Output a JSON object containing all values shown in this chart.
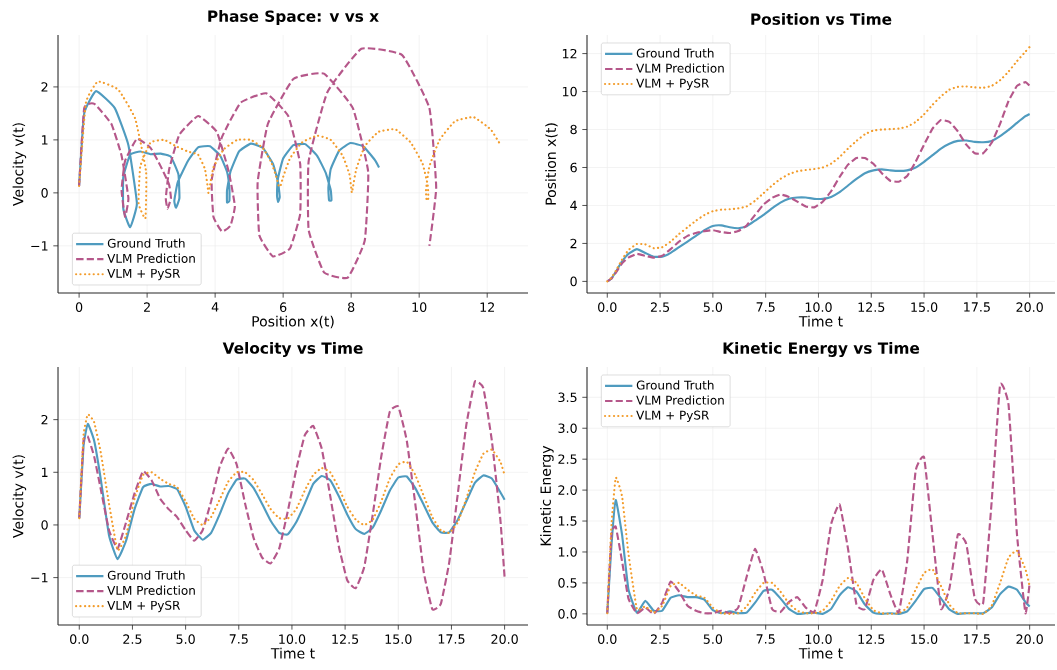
{
  "chart_data": [
    {
      "type": "line",
      "title": "Phase Space: v vs x",
      "xlabel": "Position x(t)",
      "ylabel": "Velocity v(t)",
      "xlim": [
        -0.62,
        13.2
      ],
      "ylim": [
        -1.89,
        2.98
      ],
      "xticks": [
        0,
        2,
        4,
        6,
        8,
        10,
        12
      ],
      "yticks": [
        {
          "value": -1,
          "label": "−1"
        },
        0,
        1,
        2
      ],
      "grid": true,
      "legend": "bottom left",
      "series": [
        {
          "name": "Ground Truth",
          "color": "#4f9bbf",
          "line_style": "solid",
          "x": [
            0,
            0.15,
            0.5,
            1.05,
            1.45,
            1.7,
            1.5,
            1.3,
            1.3,
            1.5,
            1.8,
            2.1,
            2.4,
            2.7,
            2.92,
            2.95,
            2.85,
            2.8,
            2.9,
            3.2,
            3.5,
            3.85,
            4.15,
            4.35,
            4.42,
            4.42,
            4.35,
            4.35,
            4.45,
            4.7,
            5.05,
            5.4,
            5.7,
            5.85,
            5.9,
            5.85,
            5.82,
            5.85,
            6.0,
            6.3,
            6.65,
            7.0,
            7.25,
            7.4,
            7.42,
            7.35,
            7.33,
            7.4,
            7.65,
            7.98,
            8.35,
            8.7,
            8.82
          ],
          "values": [
            0.13,
            1.5,
            1.92,
            1.6,
            0.9,
            -0.2,
            -0.65,
            -0.3,
            0.3,
            0.72,
            0.78,
            0.73,
            0.74,
            0.68,
            0.35,
            -0.1,
            -0.28,
            -0.15,
            0.2,
            0.6,
            0.86,
            0.88,
            0.7,
            0.4,
            0.08,
            -0.15,
            -0.18,
            0.05,
            0.4,
            0.78,
            0.93,
            0.85,
            0.55,
            0.2,
            -0.08,
            -0.17,
            -0.05,
            0.28,
            0.65,
            0.9,
            0.92,
            0.7,
            0.38,
            0.05,
            -0.14,
            -0.14,
            0.1,
            0.45,
            0.8,
            0.94,
            0.88,
            0.62,
            0.48
          ]
        },
        {
          "name": "VLM Prediction",
          "color": "#b5578a",
          "line_style": "dashed",
          "x": [
            0,
            0.15,
            0.45,
            0.95,
            1.25,
            1.45,
            1.35,
            1.25,
            1.35,
            1.7,
            2.1,
            2.4,
            2.55,
            2.65,
            2.7,
            2.6,
            2.55,
            2.65,
            2.95,
            3.5,
            4.05,
            4.4,
            4.58,
            4.45,
            4.2,
            3.95,
            3.9,
            4.2,
            4.75,
            5.5,
            6.15,
            6.5,
            6.5,
            6.2,
            5.7,
            5.3,
            5.25,
            5.55,
            6.3,
            7.2,
            8.05,
            8.5,
            8.4,
            7.9,
            7.2,
            6.75,
            6.75,
            7.3,
            8.3,
            9.5,
            10.3,
            10.5,
            10.3
          ],
          "values": [
            0.13,
            1.6,
            1.68,
            1.3,
            0.7,
            -0.1,
            -0.45,
            0.05,
            0.6,
            1.02,
            0.85,
            0.5,
            0.3,
            0.15,
            -0.1,
            -0.3,
            -0.1,
            0.45,
            1.1,
            1.45,
            1.15,
            0.4,
            -0.25,
            -0.62,
            -0.73,
            -0.45,
            0.25,
            1.05,
            1.7,
            1.88,
            1.45,
            0.55,
            -0.4,
            -1.05,
            -1.2,
            -0.8,
            0.2,
            1.3,
            2.15,
            2.25,
            1.6,
            0.4,
            -0.9,
            -1.6,
            -1.5,
            -0.7,
            0.6,
            1.9,
            2.72,
            2.6,
            1.6,
            0.1,
            -1.0
          ]
        },
        {
          "name": "VLM + PySR",
          "color": "#f39c2b",
          "line_style": "dotted",
          "x": [
            0,
            0.2,
            0.55,
            1.15,
            1.65,
            1.97,
            1.95,
            1.75,
            1.8,
            2.1,
            2.5,
            2.85,
            3.2,
            3.5,
            3.7,
            3.78,
            3.8,
            3.85,
            3.95,
            4.25,
            4.65,
            5.05,
            5.4,
            5.65,
            5.8,
            5.87,
            5.92,
            6.0,
            6.2,
            6.55,
            7.0,
            7.4,
            7.75,
            7.95,
            8.0,
            8.02,
            8.05,
            8.15,
            8.4,
            8.8,
            9.3,
            9.75,
            10.1,
            10.25,
            10.27,
            10.22,
            10.2,
            10.3,
            10.6,
            11.05,
            11.6,
            12.1,
            12.35
          ],
          "values": [
            0.13,
            1.7,
            2.1,
            1.95,
            1.4,
            0.4,
            -0.48,
            -0.2,
            0.5,
            0.95,
            1.0,
            0.88,
            0.78,
            0.72,
            0.45,
            0.12,
            0.0,
            0.15,
            0.48,
            0.82,
            1.0,
            1.0,
            0.85,
            0.58,
            0.3,
            0.13,
            0.12,
            0.3,
            0.65,
            0.95,
            1.08,
            1.0,
            0.7,
            0.35,
            0.1,
            0.0,
            0.1,
            0.45,
            0.88,
            1.15,
            1.2,
            0.95,
            0.55,
            0.15,
            -0.1,
            -0.15,
            0.05,
            0.5,
            1.0,
            1.35,
            1.43,
            1.2,
            0.95
          ]
        }
      ]
    },
    {
      "type": "line",
      "title": "Position vs Time",
      "xlabel": "Time t",
      "ylabel": "Position x(t)",
      "xlim": [
        -0.96,
        21.2
      ],
      "ylim": [
        -0.61,
        12.98
      ],
      "xticks": [
        {
          "value": 0,
          "label": "0.0"
        },
        {
          "value": 2.5,
          "label": "2.5"
        },
        {
          "value": 5,
          "label": "5.0"
        },
        {
          "value": 7.5,
          "label": "7.5"
        },
        {
          "value": 10,
          "label": "10.0"
        },
        {
          "value": 12.5,
          "label": "12.5"
        },
        {
          "value": 15,
          "label": "15.0"
        },
        {
          "value": 17.5,
          "label": "17.5"
        },
        {
          "value": 20,
          "label": "20.0"
        }
      ],
      "yticks": [
        0,
        2,
        4,
        6,
        8,
        10,
        12
      ],
      "grid": true,
      "legend": "top left",
      "x": [
        0,
        0.2,
        0.4,
        0.7,
        1.0,
        1.4,
        1.8,
        2.2,
        2.6,
        3.0,
        3.4,
        3.8,
        4.2,
        4.6,
        5.0,
        5.4,
        5.8,
        6.2,
        6.6,
        7.0,
        7.4,
        7.8,
        8.2,
        8.6,
        9.0,
        9.4,
        9.8,
        10.2,
        10.6,
        11.0,
        11.4,
        11.8,
        12.2,
        12.6,
        13.0,
        13.4,
        13.8,
        14.2,
        14.6,
        15.0,
        15.4,
        15.8,
        16.2,
        16.6,
        17.0,
        17.4,
        17.8,
        18.2,
        18.6,
        19.0,
        19.4,
        19.8,
        20.0
      ],
      "series": [
        {
          "name": "Ground Truth",
          "color": "#4f9bbf",
          "line_style": "solid",
          "values": [
            0,
            0.15,
            0.5,
            1.05,
            1.45,
            1.7,
            1.5,
            1.3,
            1.3,
            1.5,
            1.8,
            2.1,
            2.4,
            2.7,
            2.92,
            2.95,
            2.85,
            2.8,
            2.9,
            3.2,
            3.5,
            3.85,
            4.15,
            4.35,
            4.42,
            4.42,
            4.35,
            4.35,
            4.45,
            4.7,
            5.05,
            5.4,
            5.7,
            5.85,
            5.9,
            5.85,
            5.82,
            5.85,
            6.0,
            6.3,
            6.65,
            7.0,
            7.25,
            7.4,
            7.42,
            7.35,
            7.33,
            7.4,
            7.65,
            7.98,
            8.35,
            8.7,
            8.82
          ]
        },
        {
          "name": "VLM Prediction",
          "color": "#b5578a",
          "line_style": "dashed",
          "values": [
            0,
            0.15,
            0.45,
            0.95,
            1.25,
            1.45,
            1.35,
            1.25,
            1.35,
            1.7,
            2.1,
            2.4,
            2.55,
            2.65,
            2.7,
            2.6,
            2.55,
            2.65,
            2.95,
            3.5,
            4.05,
            4.4,
            4.58,
            4.45,
            4.2,
            3.95,
            3.9,
            4.2,
            4.75,
            5.5,
            6.15,
            6.5,
            6.5,
            6.2,
            5.7,
            5.3,
            5.25,
            5.55,
            6.3,
            7.2,
            8.05,
            8.5,
            8.4,
            7.9,
            7.2,
            6.75,
            6.75,
            7.3,
            8.3,
            9.5,
            10.3,
            10.5,
            10.3
          ]
        },
        {
          "name": "VLM + PySR",
          "color": "#f39c2b",
          "line_style": "dotted",
          "values": [
            0,
            0.2,
            0.55,
            1.15,
            1.65,
            1.97,
            1.95,
            1.75,
            1.8,
            2.1,
            2.5,
            2.85,
            3.2,
            3.5,
            3.7,
            3.78,
            3.8,
            3.85,
            3.95,
            4.25,
            4.65,
            5.05,
            5.4,
            5.65,
            5.8,
            5.87,
            5.92,
            6.0,
            6.2,
            6.55,
            7.0,
            7.4,
            7.75,
            7.95,
            8.0,
            8.02,
            8.05,
            8.15,
            8.4,
            8.8,
            9.3,
            9.75,
            10.1,
            10.25,
            10.27,
            10.22,
            10.2,
            10.3,
            10.6,
            11.05,
            11.6,
            12.1,
            12.35
          ]
        }
      ]
    },
    {
      "type": "line",
      "title": "Velocity vs Time",
      "xlabel": "Time t",
      "ylabel": "Velocity v(t)",
      "xlim": [
        -1.0,
        21.1
      ],
      "ylim": [
        -1.9,
        3.0
      ],
      "xticks": [
        {
          "value": 0,
          "label": "0.0"
        },
        {
          "value": 2.5,
          "label": "2.5"
        },
        {
          "value": 5,
          "label": "5.0"
        },
        {
          "value": 7.5,
          "label": "7.5"
        },
        {
          "value": 10,
          "label": "10.0"
        },
        {
          "value": 12.5,
          "label": "12.5"
        },
        {
          "value": 15,
          "label": "15.0"
        },
        {
          "value": 17.5,
          "label": "17.5"
        },
        {
          "value": 20,
          "label": "20.0"
        }
      ],
      "yticks": [
        {
          "value": -1,
          "label": "−1"
        },
        0,
        1,
        2
      ],
      "grid": true,
      "legend": "bottom left",
      "x": [
        0,
        0.2,
        0.4,
        0.7,
        1.0,
        1.4,
        1.8,
        2.2,
        2.6,
        3.0,
        3.4,
        3.8,
        4.2,
        4.6,
        5.0,
        5.4,
        5.8,
        6.2,
        6.6,
        7.0,
        7.4,
        7.8,
        8.2,
        8.6,
        9.0,
        9.4,
        9.8,
        10.2,
        10.6,
        11.0,
        11.4,
        11.8,
        12.2,
        12.6,
        13.0,
        13.4,
        13.8,
        14.2,
        14.6,
        15.0,
        15.4,
        15.8,
        16.2,
        16.6,
        17.0,
        17.4,
        17.8,
        18.2,
        18.6,
        19.0,
        19.4,
        19.8,
        20.0
      ],
      "series": [
        {
          "name": "Ground Truth",
          "color": "#4f9bbf",
          "line_style": "solid",
          "values": [
            0.13,
            1.5,
            1.92,
            1.6,
            0.9,
            -0.2,
            -0.65,
            -0.3,
            0.3,
            0.72,
            0.78,
            0.73,
            0.74,
            0.68,
            0.35,
            -0.1,
            -0.28,
            -0.15,
            0.2,
            0.6,
            0.86,
            0.88,
            0.7,
            0.4,
            0.08,
            -0.15,
            -0.18,
            0.05,
            0.4,
            0.78,
            0.93,
            0.85,
            0.55,
            0.2,
            -0.08,
            -0.17,
            -0.05,
            0.28,
            0.65,
            0.9,
            0.92,
            0.7,
            0.38,
            0.05,
            -0.14,
            -0.14,
            0.1,
            0.45,
            0.8,
            0.94,
            0.88,
            0.62,
            0.48
          ]
        },
        {
          "name": "VLM Prediction",
          "color": "#b5578a",
          "line_style": "dashed",
          "values": [
            0.13,
            1.6,
            1.68,
            1.3,
            0.7,
            -0.1,
            -0.45,
            0.05,
            0.6,
            1.02,
            0.85,
            0.5,
            0.3,
            0.15,
            -0.1,
            -0.3,
            -0.1,
            0.45,
            1.1,
            1.45,
            1.15,
            0.4,
            -0.25,
            -0.62,
            -0.73,
            -0.45,
            0.25,
            1.05,
            1.7,
            1.88,
            1.45,
            0.55,
            -0.4,
            -1.05,
            -1.2,
            -0.8,
            0.2,
            1.3,
            2.15,
            2.25,
            1.6,
            0.4,
            -0.9,
            -1.6,
            -1.5,
            -0.7,
            0.6,
            1.9,
            2.72,
            2.6,
            1.6,
            0.1,
            -1.0
          ]
        },
        {
          "name": "VLM + PySR",
          "color": "#f39c2b",
          "line_style": "dotted",
          "values": [
            0.13,
            1.7,
            2.1,
            1.95,
            1.4,
            0.4,
            -0.48,
            -0.2,
            0.5,
            0.95,
            1.0,
            0.88,
            0.78,
            0.72,
            0.45,
            0.12,
            0.0,
            0.15,
            0.48,
            0.82,
            1.0,
            1.0,
            0.85,
            0.58,
            0.3,
            0.13,
            0.12,
            0.3,
            0.65,
            0.95,
            1.08,
            1.0,
            0.7,
            0.35,
            0.1,
            0.0,
            0.1,
            0.45,
            0.88,
            1.15,
            1.2,
            0.95,
            0.55,
            0.15,
            -0.1,
            -0.15,
            0.05,
            0.5,
            1.0,
            1.35,
            1.43,
            1.2,
            0.95
          ]
        }
      ]
    },
    {
      "type": "line",
      "title": "Kinetic Energy vs Time",
      "xlabel": "Time t",
      "ylabel": "Kinetic Energy",
      "xlim": [
        -0.96,
        21.2
      ],
      "ylim": [
        -0.18,
        3.99
      ],
      "xticks": [
        {
          "value": 0,
          "label": "0.0"
        },
        {
          "value": 2.5,
          "label": "2.5"
        },
        {
          "value": 5,
          "label": "5.0"
        },
        {
          "value": 7.5,
          "label": "7.5"
        },
        {
          "value": 10,
          "label": "10.0"
        },
        {
          "value": 12.5,
          "label": "12.5"
        },
        {
          "value": 15,
          "label": "15.0"
        },
        {
          "value": 17.5,
          "label": "17.5"
        },
        {
          "value": 20,
          "label": "20.0"
        }
      ],
      "yticks": [
        {
          "value": 0,
          "label": "0.0"
        },
        0.5,
        {
          "value": 1,
          "label": "1.0"
        },
        1.5,
        {
          "value": 2,
          "label": "2.0"
        },
        2.5,
        {
          "value": 3,
          "label": "3.0"
        },
        3.5
      ],
      "grid": true,
      "legend": "top left",
      "x": [
        0,
        0.2,
        0.4,
        0.7,
        1.0,
        1.4,
        1.8,
        2.2,
        2.6,
        3.0,
        3.4,
        3.8,
        4.2,
        4.6,
        5.0,
        5.4,
        5.8,
        6.2,
        6.6,
        7.0,
        7.4,
        7.8,
        8.2,
        8.6,
        9.0,
        9.4,
        9.8,
        10.2,
        10.6,
        11.0,
        11.4,
        11.8,
        12.2,
        12.6,
        13.0,
        13.4,
        13.8,
        14.2,
        14.6,
        15.0,
        15.4,
        15.8,
        16.2,
        16.6,
        17.0,
        17.4,
        17.8,
        18.2,
        18.6,
        19.0,
        19.4,
        19.8,
        20.0
      ],
      "series": [
        {
          "name": "Ground Truth",
          "color": "#4f9bbf",
          "line_style": "solid",
          "values": [
            0.01,
            1.12,
            1.84,
            1.28,
            0.4,
            0.02,
            0.21,
            0.05,
            0.05,
            0.26,
            0.3,
            0.27,
            0.27,
            0.23,
            0.06,
            0.01,
            0.04,
            0.01,
            0.02,
            0.18,
            0.37,
            0.39,
            0.25,
            0.08,
            0.0,
            0.01,
            0.02,
            0.0,
            0.08,
            0.3,
            0.43,
            0.36,
            0.15,
            0.02,
            0.0,
            0.01,
            0.0,
            0.04,
            0.21,
            0.4,
            0.42,
            0.25,
            0.07,
            0.0,
            0.01,
            0.01,
            0.01,
            0.1,
            0.32,
            0.44,
            0.39,
            0.19,
            0.12
          ]
        },
        {
          "name": "VLM Prediction",
          "color": "#b5578a",
          "line_style": "dashed",
          "values": [
            0.01,
            1.28,
            1.41,
            0.85,
            0.25,
            0.01,
            0.1,
            0.0,
            0.18,
            0.52,
            0.36,
            0.13,
            0.05,
            0.01,
            0.01,
            0.05,
            0.01,
            0.1,
            0.6,
            1.05,
            0.66,
            0.08,
            0.03,
            0.19,
            0.27,
            0.1,
            0.03,
            0.55,
            1.45,
            1.77,
            1.05,
            0.15,
            0.08,
            0.55,
            0.72,
            0.32,
            0.02,
            0.85,
            2.31,
            2.53,
            1.28,
            0.08,
            0.41,
            1.28,
            1.13,
            0.25,
            0.18,
            1.81,
            3.7,
            3.38,
            1.28,
            0.01,
            0.5
          ]
        },
        {
          "name": "VLM + PySR",
          "color": "#f39c2b",
          "line_style": "dotted",
          "values": [
            0.01,
            1.45,
            2.2,
            1.9,
            0.98,
            0.08,
            0.12,
            0.02,
            0.13,
            0.45,
            0.5,
            0.39,
            0.3,
            0.26,
            0.1,
            0.01,
            0.0,
            0.01,
            0.12,
            0.34,
            0.5,
            0.5,
            0.36,
            0.17,
            0.05,
            0.01,
            0.01,
            0.05,
            0.21,
            0.45,
            0.58,
            0.5,
            0.25,
            0.06,
            0.01,
            0.0,
            0.01,
            0.1,
            0.39,
            0.66,
            0.72,
            0.45,
            0.15,
            0.01,
            0.01,
            0.01,
            0.0,
            0.13,
            0.5,
            0.91,
            1.02,
            0.72,
            0.45
          ]
        }
      ]
    }
  ]
}
